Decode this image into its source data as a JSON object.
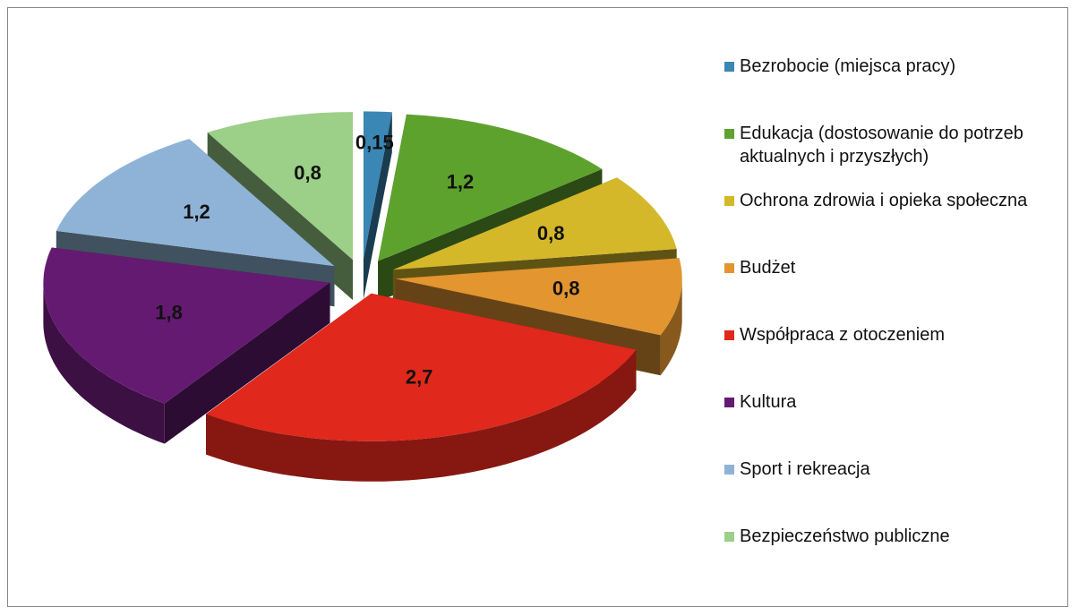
{
  "chart_data": {
    "type": "pie",
    "categories": [
      "Bezrobocie (miejsca pracy)",
      "Edukacja (dostosowanie do potrzeb aktualnych i przyszłych)",
      "Ochrona zdrowia i opieka społeczna",
      "Budżet",
      "Współpraca z otoczeniem",
      "Kultura",
      "Sport i rekreacja",
      "Bezpieczeństwo publiczne"
    ],
    "values": [
      0.15,
      1.2,
      0.8,
      0.8,
      2.7,
      1.8,
      1.2,
      0.8
    ],
    "value_labels": [
      "0,15",
      "1,2",
      "0,8",
      "0,8",
      "2,7",
      "1,8",
      "1,2",
      "0,8"
    ],
    "colors": [
      "#3a86b4",
      "#5ea22e",
      "#d4b82a",
      "#e39530",
      "#e0281c",
      "#651a72",
      "#8fb3d6",
      "#9ccf87"
    ],
    "legend": "right"
  }
}
